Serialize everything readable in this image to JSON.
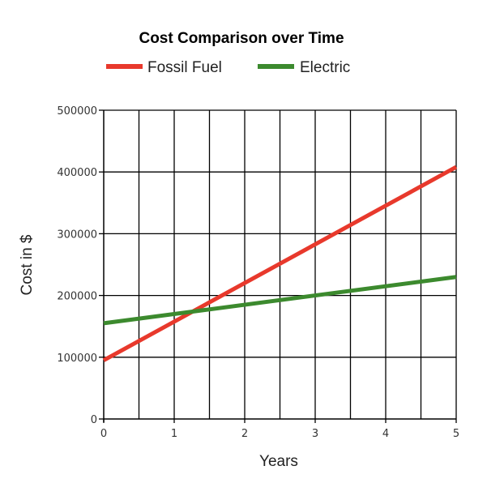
{
  "chart_data": {
    "type": "line",
    "title": "Cost Comparison over Time",
    "xlabel": "Years",
    "ylabel": "Cost in $",
    "xlim": [
      0,
      5
    ],
    "ylim": [
      0,
      500000
    ],
    "x_ticks": [
      0,
      1,
      2,
      3,
      4,
      5
    ],
    "y_ticks": [
      0,
      100000,
      200000,
      300000,
      400000,
      500000
    ],
    "x_tick_labels": [
      "0",
      "1",
      "2",
      "3",
      "4",
      "5"
    ],
    "y_tick_labels": [
      "0",
      "100000",
      "200000",
      "300000",
      "400000",
      "500000"
    ],
    "x_minor_step": 0.5,
    "grid": true,
    "legend_position": "top",
    "series": [
      {
        "name": "Fossil Fuel",
        "color": "#e8392c",
        "x": [
          0,
          5
        ],
        "values": [
          95000,
          408000
        ]
      },
      {
        "name": "Electric",
        "color": "#3c8a2e",
        "x": [
          0,
          5
        ],
        "values": [
          155000,
          230000
        ]
      }
    ]
  }
}
